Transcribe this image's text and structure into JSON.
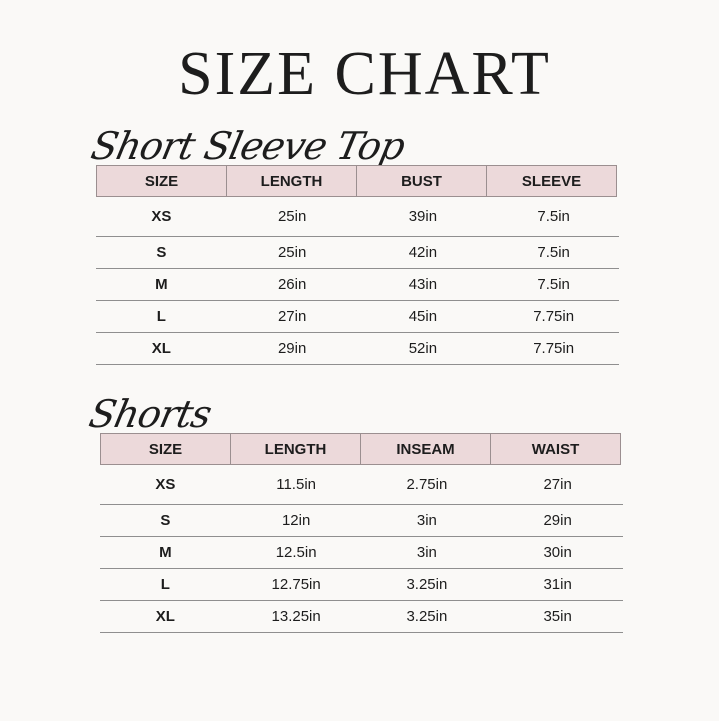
{
  "title": "SIZE CHART",
  "tables": [
    {
      "heading": "Short Sleeve Top",
      "columns": [
        "SIZE",
        "LENGTH",
        "BUST",
        "SLEEVE"
      ],
      "rows": [
        [
          "XS",
          "25in",
          "39in",
          "7.5in"
        ],
        [
          "S",
          "25in",
          "42in",
          "7.5in"
        ],
        [
          "M",
          "26in",
          "43in",
          "7.5in"
        ],
        [
          "L",
          "27in",
          "45in",
          "7.75in"
        ],
        [
          "XL",
          "29in",
          "52in",
          "7.75in"
        ]
      ]
    },
    {
      "heading": "Shorts",
      "columns": [
        "SIZE",
        "LENGTH",
        "INSEAM",
        "WAIST"
      ],
      "rows": [
        [
          "XS",
          "11.5in",
          "2.75in",
          "27in"
        ],
        [
          "S",
          "12in",
          "3in",
          "29in"
        ],
        [
          "M",
          "12.5in",
          "3in",
          "30in"
        ],
        [
          "L",
          "12.75in",
          "3.25in",
          "31in"
        ],
        [
          "XL",
          "13.25in",
          "3.25in",
          "35in"
        ]
      ]
    }
  ],
  "colors": {
    "header_bg": "#ecd9da",
    "border": "#9b8f90",
    "background": "#faf9f7"
  }
}
